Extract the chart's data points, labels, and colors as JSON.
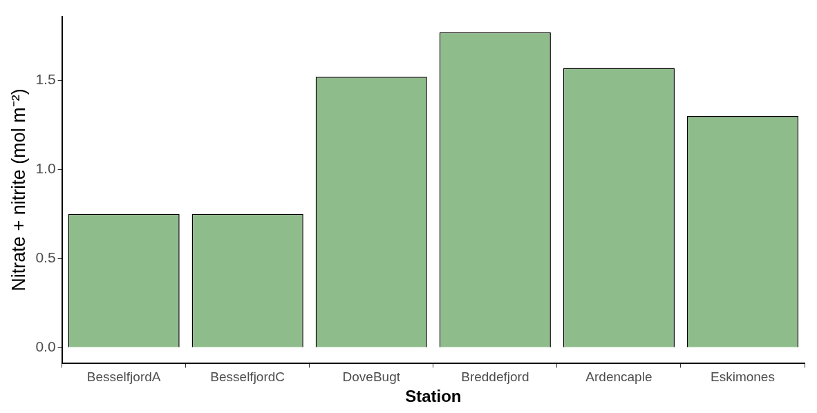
{
  "chart_data": {
    "type": "bar",
    "xlabel": "Station",
    "ylabel": "Nitrate + nitrite (mol m⁻²)",
    "categories": [
      "BesselfjordA",
      "BesselfjordC",
      "DoveBugt",
      "Breddefjord",
      "Ardencaple",
      "Eskimones"
    ],
    "values": [
      0.75,
      0.75,
      1.52,
      1.77,
      1.57,
      1.3
    ],
    "color": "#8fbc8b",
    "ylim": [
      -0.09,
      1.86
    ],
    "yticks": [
      {
        "value": 0,
        "label": "0.0"
      },
      {
        "value": 0.5,
        "label": "0.5"
      },
      {
        "value": 1,
        "label": "1.0"
      },
      {
        "value": 1.5,
        "label": "1.5"
      }
    ],
    "grid": false,
    "legend": false
  }
}
